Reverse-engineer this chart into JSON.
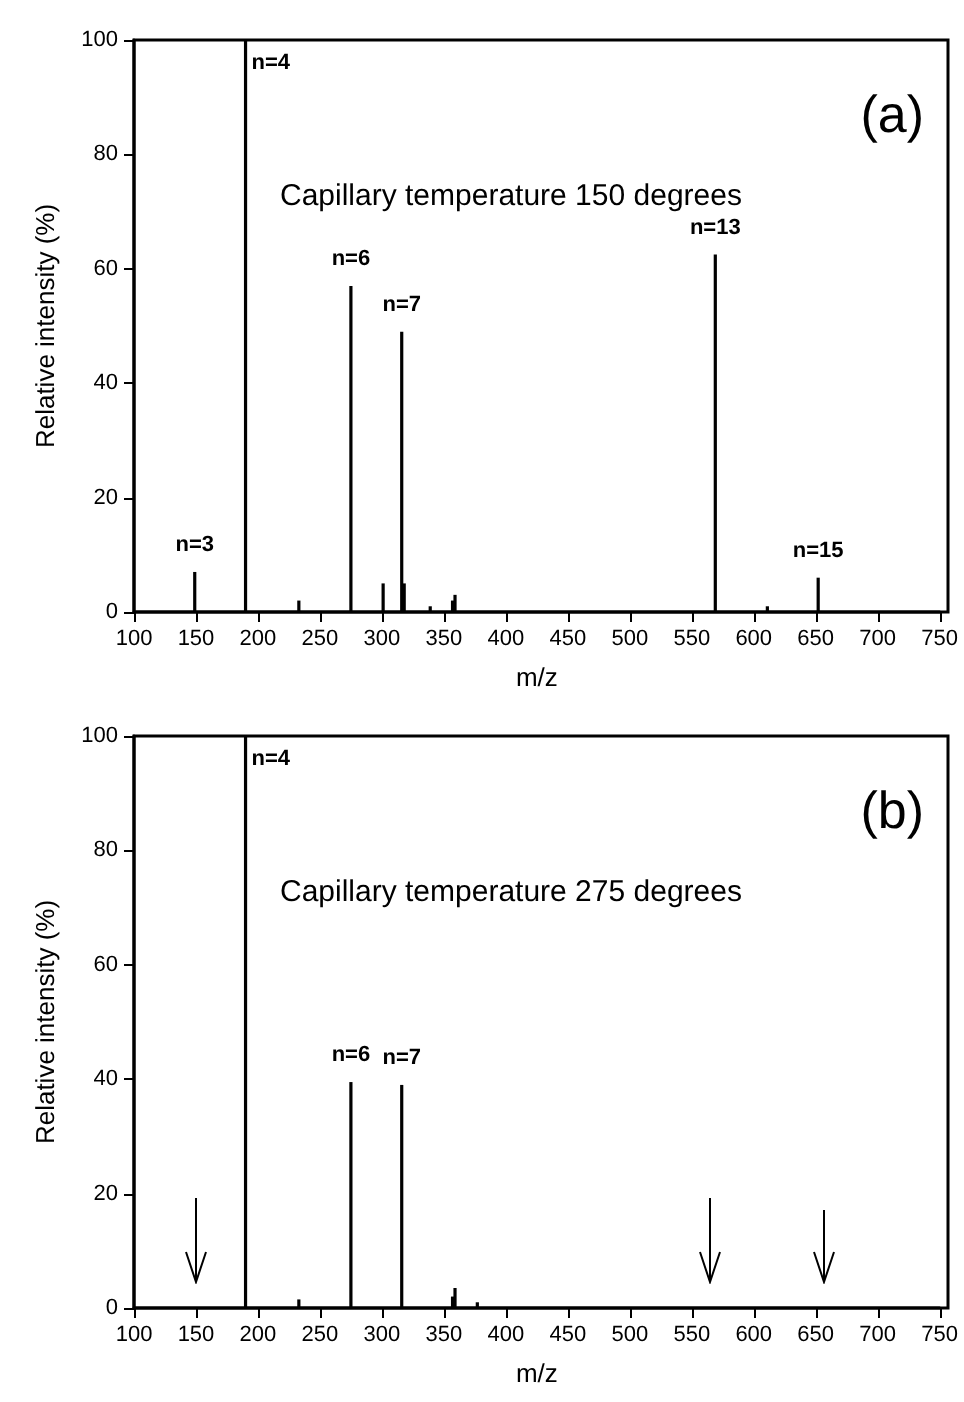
{
  "chart_data": [
    {
      "type": "bar",
      "xlabel": "m/z",
      "ylabel": "Relative intensity (%)",
      "x": [
        149,
        190,
        233,
        275,
        301,
        316,
        318,
        339,
        357,
        359,
        569,
        611,
        652
      ],
      "values": [
        7,
        100,
        2,
        57,
        5,
        49,
        5,
        1,
        2,
        3,
        62.5,
        1,
        6
      ],
      "color": "#000000",
      "xlim": [
        100,
        750
      ],
      "xticks": [
        100,
        150,
        200,
        250,
        300,
        350,
        400,
        450,
        500,
        550,
        600,
        650,
        700,
        750
      ],
      "ylim": [
        0,
        100
      ],
      "yticks": [
        0,
        20,
        40,
        60,
        80,
        100
      ],
      "grid": false,
      "annotations": [
        {
          "text": "n=3",
          "x": 149,
          "y": 7
        },
        {
          "text": "n=4",
          "x": 190,
          "y": 100
        },
        {
          "text": "n=6",
          "x": 275,
          "y": 57
        },
        {
          "text": "n=7",
          "x": 316,
          "y": 49
        },
        {
          "text": "n=13",
          "x": 569,
          "y": 62.5
        },
        {
          "text": "n=15",
          "x": 652,
          "y": 6
        },
        "Capillary temperature 150 degrees",
        "(a)"
      ]
    },
    {
      "type": "bar",
      "xlabel": "m/z",
      "ylabel": "Relative intensity (%)",
      "x": [
        190,
        233,
        275,
        316,
        339,
        357,
        359,
        377
      ],
      "values": [
        100,
        1.5,
        39.5,
        39,
        null,
        2,
        3.5,
        1
      ],
      "color": "#000000",
      "xlim": [
        100,
        750
      ],
      "xticks": [
        100,
        150,
        200,
        250,
        300,
        350,
        400,
        450,
        500,
        550,
        600,
        650,
        700,
        750
      ],
      "ylim": [
        0,
        100
      ],
      "yticks": [
        0,
        20,
        40,
        60,
        80,
        100
      ],
      "grid": false,
      "annotations": [
        {
          "text": "n=4",
          "x": 190,
          "y": 100
        },
        {
          "text": "n=6",
          "x": 275,
          "y": 39.5
        },
        {
          "text": "n=7",
          "x": 316,
          "y": 39
        },
        "Capillary temperature 275 degrees",
        "(b)"
      ]
    }
  ]
}
